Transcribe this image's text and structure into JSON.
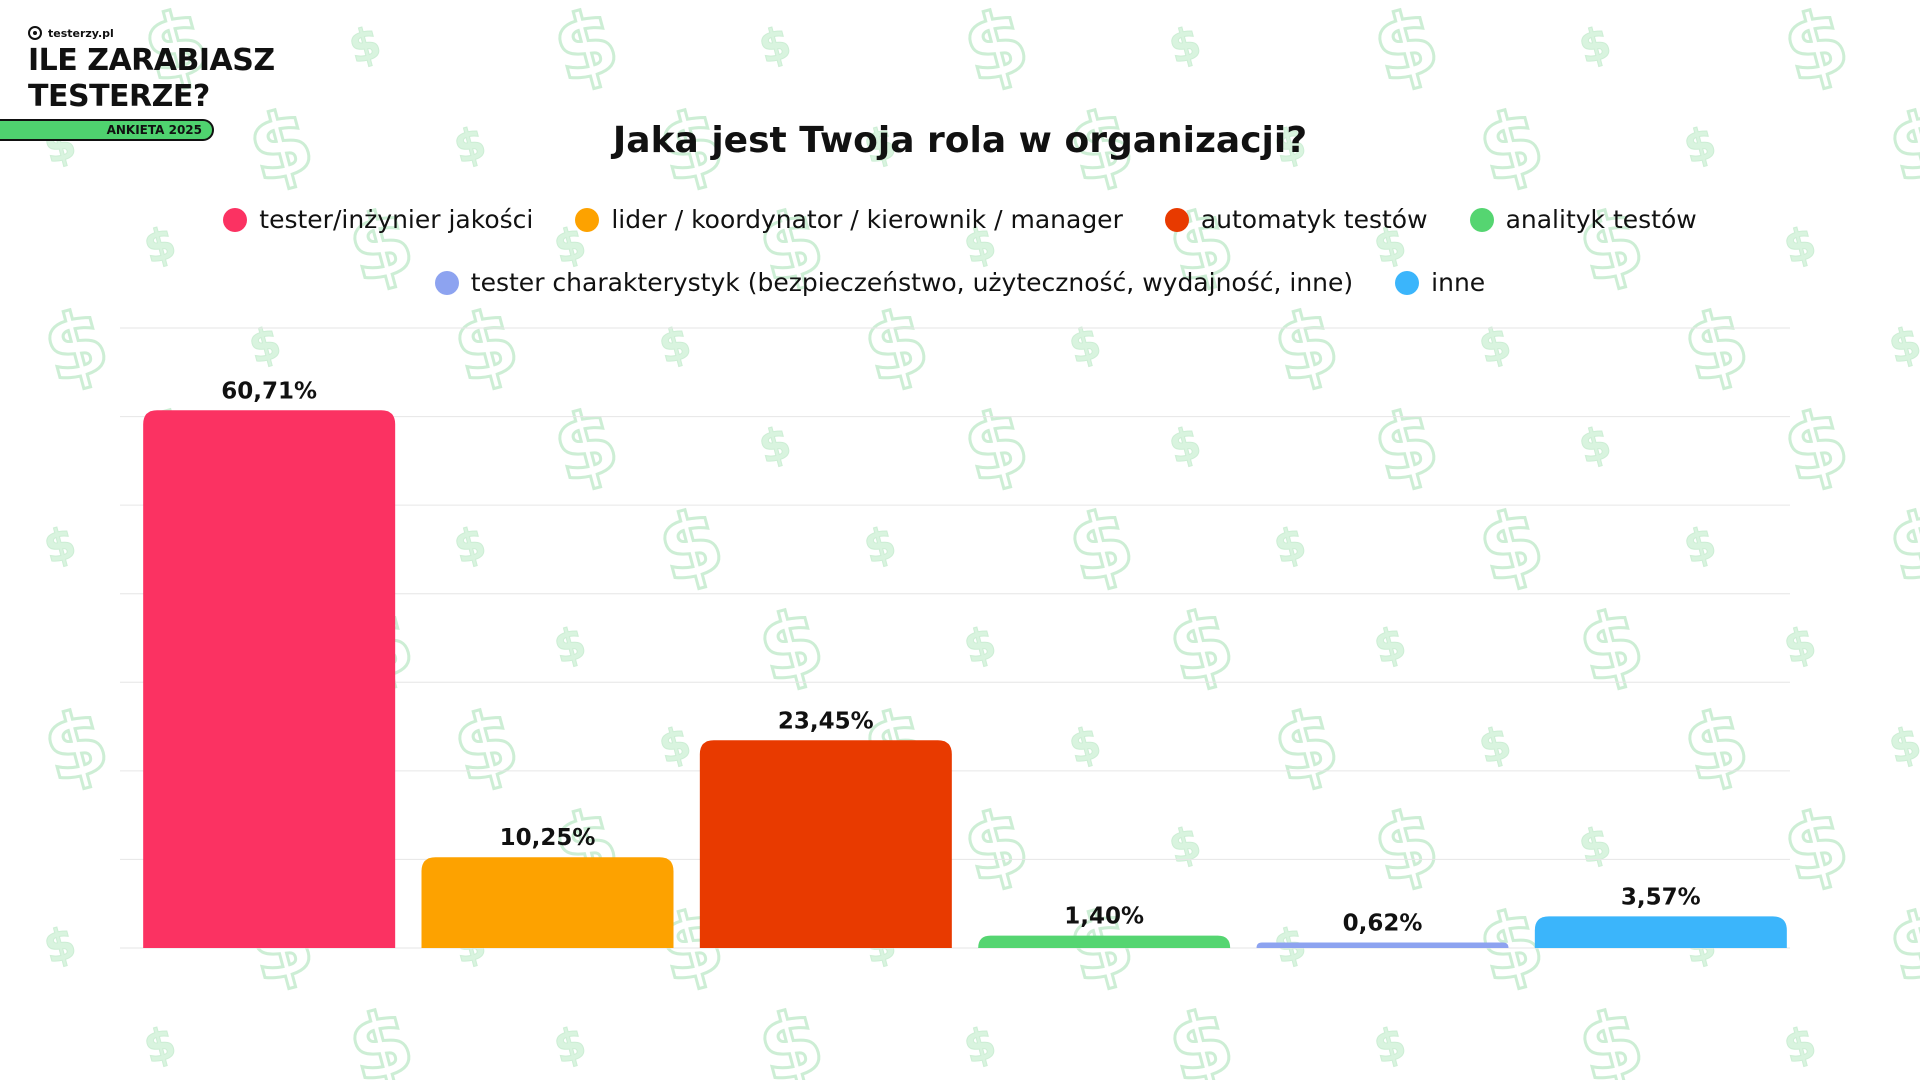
{
  "brand": {
    "site": "testerzy.pl",
    "title_line1": "ILE ZARABIASZ",
    "title_line2": "TESTERZE?",
    "badge": "ANKIETA 2025",
    "badge_color": "#4fd26f",
    "background_icon": "dollar-sign-icon"
  },
  "chart_data": {
    "type": "bar",
    "title": "Jaka jest Twoja rola w organizacji?",
    "xlabel": "",
    "ylabel": "",
    "ylim": [
      0,
      70
    ],
    "grid": true,
    "legend_position": "top-center",
    "categories": [
      "tester/inżynier jakości",
      "lider / koordynator / kierownik / manager",
      "automatyk testów",
      "analityk testów",
      "tester charakterystyk (bezpieczeństwo, użyteczność, wydajność, inne)",
      "inne"
    ],
    "values": [
      60.71,
      10.25,
      23.45,
      1.4,
      0.62,
      3.57
    ],
    "value_labels": [
      "60,71%",
      "10,25%",
      "23,45%",
      "1,40%",
      "0,62%",
      "3,57%"
    ],
    "colors": [
      "#fb3262",
      "#fda200",
      "#e83a00",
      "#55d571",
      "#8da3f0",
      "#3bb5fb"
    ]
  }
}
